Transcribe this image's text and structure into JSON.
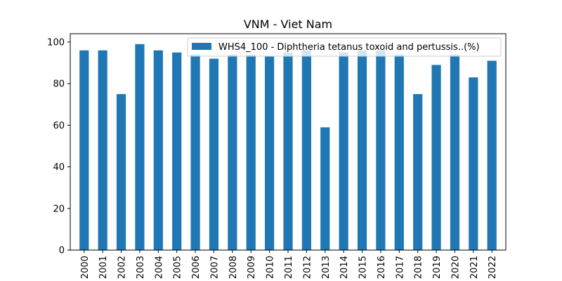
{
  "chart_data": {
    "type": "bar",
    "title": "VNM - Viet Nam",
    "xlabel": "",
    "ylabel": "",
    "categories": [
      "2000",
      "2001",
      "2002",
      "2003",
      "2004",
      "2005",
      "2006",
      "2007",
      "2008",
      "2009",
      "2010",
      "2011",
      "2012",
      "2013",
      "2014",
      "2015",
      "2016",
      "2017",
      "2018",
      "2019",
      "2020",
      "2021",
      "2022"
    ],
    "series": [
      {
        "name": "WHS4_100 - Diphtheria tetanus toxoid and pertussis..(%)",
        "values": [
          96,
          96,
          75,
          99,
          96,
          95,
          94,
          92,
          94,
          94,
          93,
          95,
          96,
          59,
          95,
          96,
          96,
          94,
          75,
          89,
          94,
          83,
          91
        ]
      }
    ],
    "ylim": [
      0,
      104
    ],
    "yticks": [
      0,
      20,
      40,
      60,
      80,
      100
    ],
    "grid": false,
    "legend_position": "top-right",
    "bar_color": "#1f77b4"
  }
}
